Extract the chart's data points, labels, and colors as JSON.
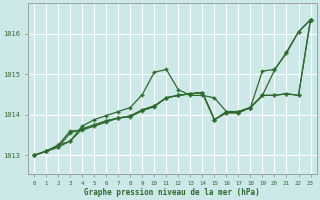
{
  "bg_color": "#cce8e8",
  "grid_color": "#ffffff",
  "line_color": "#2d6a2d",
  "xlabel": "Graphe pression niveau de la mer (hPa)",
  "ylabel_ticks": [
    1013,
    1014,
    1015,
    1016
  ],
  "xlim": [
    -0.5,
    23.5
  ],
  "ylim": [
    1012.55,
    1016.75
  ],
  "xticks": [
    0,
    1,
    2,
    3,
    4,
    5,
    6,
    7,
    8,
    9,
    10,
    11,
    12,
    13,
    14,
    15,
    16,
    17,
    18,
    19,
    20,
    21,
    22,
    23
  ],
  "series": [
    [
      1013.0,
      1013.1,
      1013.2,
      1013.55,
      1013.65,
      1013.75,
      1013.85,
      1013.92,
      1013.97,
      1014.12,
      1014.22,
      1014.42,
      1014.48,
      1014.52,
      1014.55,
      1013.88,
      1014.05,
      1014.05,
      1014.18,
      1014.48,
      1015.1,
      1015.55,
      1016.05,
      1016.35
    ],
    [
      1013.0,
      1013.1,
      1013.2,
      1013.35,
      1013.65,
      1013.75,
      1013.85,
      1013.92,
      1013.97,
      1014.12,
      1014.22,
      1014.42,
      1014.48,
      1014.52,
      1014.55,
      1013.88,
      1014.05,
      1014.05,
      1014.18,
      1014.48,
      1014.48,
      1014.52,
      1014.48,
      1016.35
    ],
    [
      1013.0,
      1013.1,
      1013.25,
      1013.35,
      1013.72,
      1013.88,
      1013.98,
      1014.08,
      1014.18,
      1014.5,
      1015.05,
      1015.12,
      1014.62,
      1014.48,
      1014.48,
      1014.42,
      1014.08,
      1014.08,
      1014.18,
      1014.48,
      1014.48,
      1014.52,
      1014.48,
      1016.35
    ],
    [
      1013.0,
      1013.1,
      1013.25,
      1013.6,
      1013.62,
      1013.72,
      1013.82,
      1013.92,
      1013.95,
      1014.1,
      1014.2,
      1014.42,
      1014.48,
      1014.52,
      1014.55,
      1013.88,
      1014.08,
      1014.08,
      1014.18,
      1015.08,
      1015.12,
      1015.52,
      1016.05,
      1016.35
    ]
  ]
}
